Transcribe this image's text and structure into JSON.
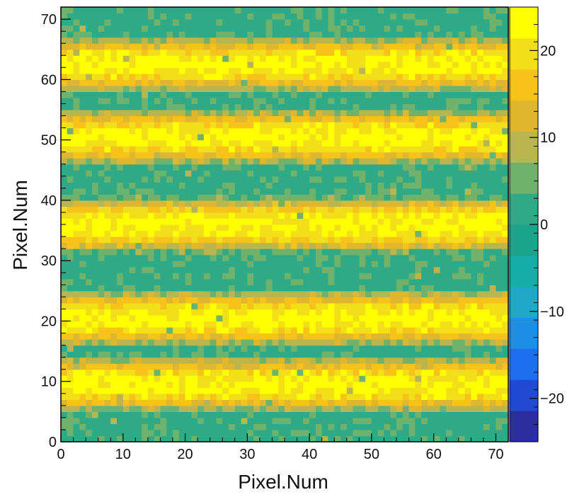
{
  "chart_data": {
    "type": "heatmap",
    "title": "",
    "xlabel": "Pixel.Num",
    "ylabel": "Pixel.Num",
    "xlim": [
      0,
      72
    ],
    "ylim": [
      0,
      72
    ],
    "x_ticks": [
      "0",
      "10",
      "20",
      "30",
      "40",
      "50",
      "60",
      "70"
    ],
    "y_ticks": [
      "0",
      "10",
      "20",
      "30",
      "40",
      "50",
      "60",
      "70"
    ],
    "colorbar": {
      "range": [
        -25,
        25
      ],
      "ticks": [
        "20",
        "10",
        "0",
        "−10",
        "−20"
      ],
      "tick_values": [
        20,
        10,
        0,
        -10,
        -20
      ],
      "colors": [
        "#2a2e9f",
        "#1f4ad1",
        "#1d6ff0",
        "#1c8fe6",
        "#1fa8c8",
        "#16ada6",
        "#1aa48c",
        "#2faa86",
        "#6fb26c",
        "#b9b650",
        "#e0b62f",
        "#f7c21a",
        "#f2df1a",
        "#ffff00"
      ]
    },
    "bands": [
      {
        "y_center": 9.5,
        "width": 3.5,
        "peak": 23
      },
      {
        "y_center": 20.5,
        "width": 3.5,
        "peak": 23
      },
      {
        "y_center": 36,
        "width": 3.5,
        "peak": 23
      },
      {
        "y_center": 50.5,
        "width": 3.5,
        "peak": 23
      },
      {
        "y_center": 62.5,
        "width": 3.5,
        "peak": 23
      }
    ],
    "background_value": 3
  }
}
